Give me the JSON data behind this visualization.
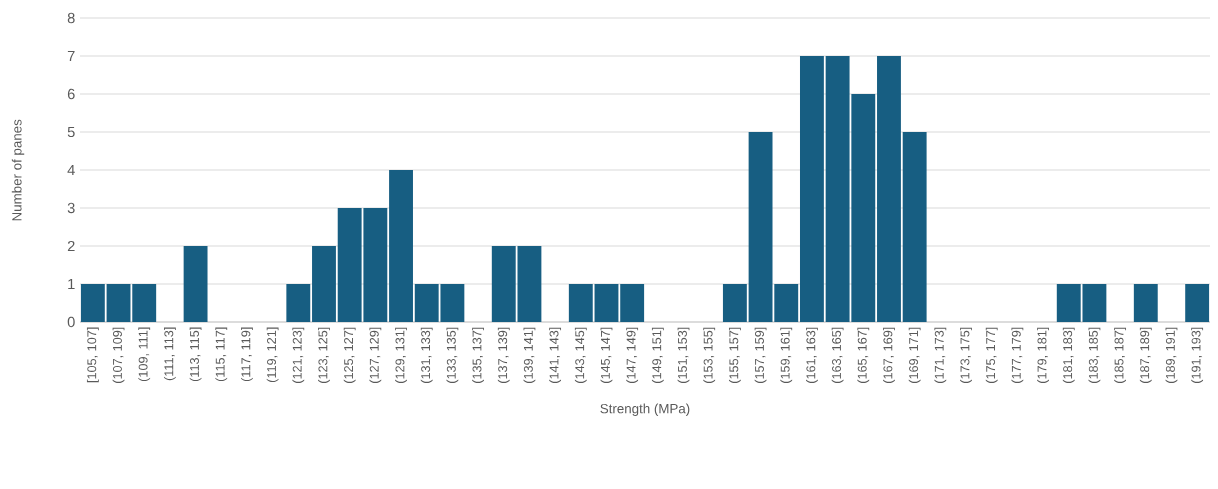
{
  "chart_data": {
    "type": "bar",
    "xlabel": "Strength (MPa)",
    "ylabel": "Number of panes",
    "categories": [
      "[105, 107]",
      "(107, 109]",
      "(109, 111]",
      "(111, 113]",
      "(113, 115]",
      "(115, 117]",
      "(117, 119]",
      "(119, 121]",
      "(121, 123]",
      "(123, 125]",
      "(125, 127]",
      "(127, 129]",
      "(129, 131]",
      "(131, 133]",
      "(133, 135]",
      "(135, 137]",
      "(137, 139]",
      "(139, 141]",
      "(141, 143]",
      "(143, 145]",
      "(145, 147]",
      "(147, 149]",
      "(149, 151]",
      "(151, 153]",
      "(153, 155]",
      "(155, 157]",
      "(157, 159]",
      "(159, 161]",
      "(161, 163]",
      "(163, 165]",
      "(165, 167]",
      "(167, 169]",
      "(169, 171]",
      "(171, 173]",
      "(173, 175]",
      "(175, 177]",
      "(177, 179]",
      "(179, 181]",
      "(181, 183]",
      "(183, 185]",
      "(185, 187]",
      "(187, 189]",
      "(189, 191]",
      "(191, 193]"
    ],
    "values": [
      1,
      1,
      1,
      0,
      2,
      0,
      0,
      0,
      1,
      2,
      3,
      3,
      4,
      1,
      1,
      0,
      2,
      2,
      0,
      1,
      1,
      1,
      0,
      0,
      0,
      1,
      5,
      1,
      7,
      7,
      6,
      7,
      5,
      0,
      0,
      0,
      0,
      0,
      1,
      1,
      0,
      1,
      0,
      1
    ],
    "color": "#175e82",
    "ylim": [
      0,
      8
    ],
    "yticks": [
      0,
      1,
      2,
      3,
      4,
      5,
      6,
      7,
      8
    ],
    "grid": "y"
  }
}
